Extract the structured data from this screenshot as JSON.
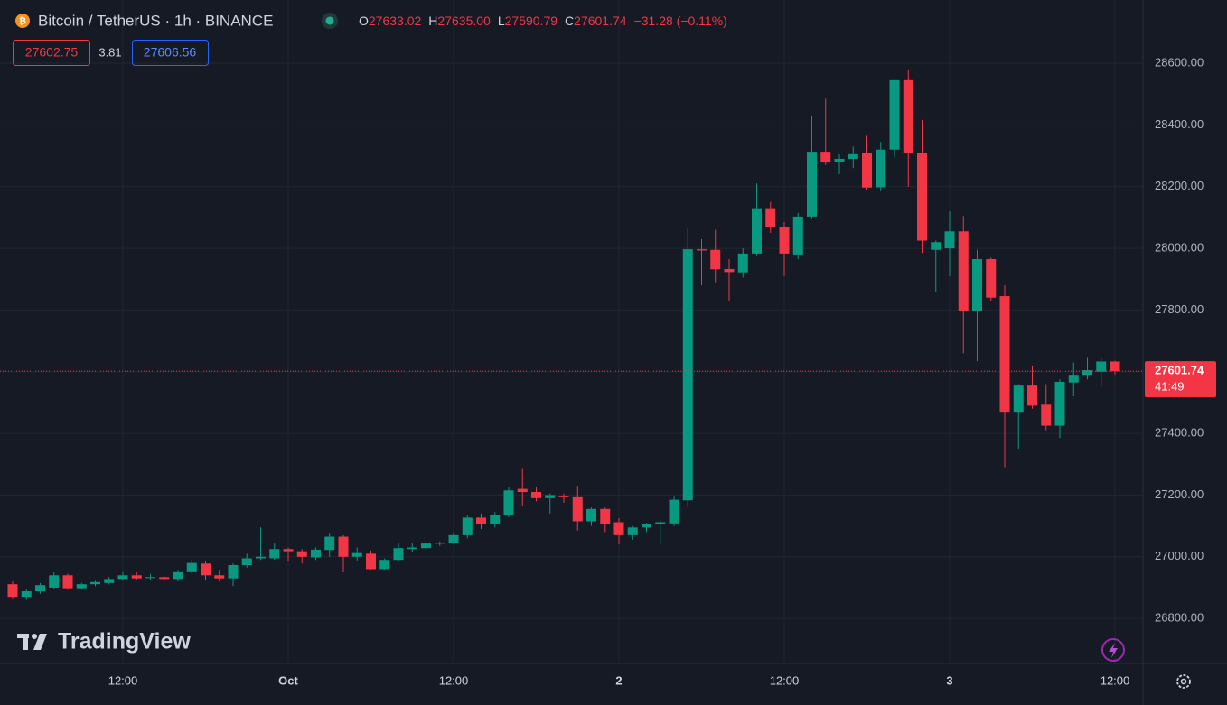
{
  "chart_data": {
    "type": "candlestick",
    "title": "Bitcoin / TetherUS · 1h · BINANCE",
    "ohlc_legend": [
      {
        "key": "O",
        "value": "27633.02"
      },
      {
        "key": "H",
        "value": "27635.00"
      },
      {
        "key": "L",
        "value": "27590.79"
      },
      {
        "key": "C",
        "value": "27601.74"
      }
    ],
    "change": "−31.28 (−0.11%)",
    "bid": "27602.75",
    "spread": "3.81",
    "ask": "27606.56",
    "watermark": "TradingView",
    "countdown": "41:49",
    "last_price": {
      "value": 27601.74,
      "label": "27601.74"
    },
    "up_color": "#089981",
    "down_color": "#f23645",
    "grid": true,
    "ylim": [
      26654,
      28805
    ],
    "yticks": [
      {
        "value": 26800,
        "label": "26800.00"
      },
      {
        "value": 27000,
        "label": "27000.00"
      },
      {
        "value": 27200,
        "label": "27200.00"
      },
      {
        "value": 27400,
        "label": "27400.00"
      },
      {
        "value": 27600,
        "label": "27600.00"
      },
      {
        "value": 27800,
        "label": "27800.00"
      },
      {
        "value": 28000,
        "label": "28000.00"
      },
      {
        "value": 28200,
        "label": "28200.00"
      },
      {
        "value": 28400,
        "label": "28400.00"
      },
      {
        "value": 28600,
        "label": "28600.00"
      }
    ],
    "categories": [
      null,
      null,
      null,
      null,
      null,
      null,
      null,
      null,
      "12:00",
      null,
      null,
      null,
      null,
      null,
      null,
      null,
      null,
      null,
      null,
      null,
      "Oct",
      null,
      null,
      null,
      null,
      null,
      null,
      null,
      null,
      null,
      null,
      null,
      "12:00",
      null,
      null,
      null,
      null,
      null,
      null,
      null,
      null,
      null,
      null,
      null,
      "2",
      null,
      null,
      null,
      null,
      null,
      null,
      null,
      null,
      null,
      null,
      null,
      "12:00",
      null,
      null,
      null,
      null,
      null,
      null,
      null,
      null,
      null,
      null,
      null,
      "3",
      null,
      null,
      null,
      null,
      null,
      null,
      null,
      null,
      null,
      null,
      null,
      "12:00"
    ],
    "open": [
      26911,
      26870,
      26888,
      26900,
      26940,
      26898,
      26911,
      26915,
      26928,
      26940,
      26932,
      26934,
      26928,
      26950,
      26978,
      26940,
      26930,
      26973,
      26995,
      26995,
      27025,
      27018,
      26998,
      27022,
      27065,
      27000,
      27010,
      26960,
      26990,
      27025,
      27028,
      27043,
      27045,
      27070,
      27127,
      27107,
      27135,
      27220,
      27210,
      27190,
      27198,
      27193,
      27115,
      27155,
      27112,
      27070,
      27095,
      27105,
      27108,
      27183,
      27997,
      27995,
      27933,
      27922,
      27983,
      28130,
      28070,
      27980,
      28103,
      28313,
      28280,
      28290,
      28308,
      28198,
      28320,
      28545,
      28308,
      27995,
      28000,
      28055,
      27798,
      27965,
      27845,
      27470,
      27555,
      27493,
      27425,
      27565,
      27590,
      27600,
      27633.02
    ],
    "high": [
      26920,
      26895,
      26915,
      26950,
      26945,
      26915,
      26922,
      26935,
      26950,
      26950,
      26945,
      26938,
      26955,
      26990,
      26985,
      26955,
      26978,
      27010,
      27095,
      27045,
      27030,
      27025,
      27030,
      27075,
      27070,
      27030,
      27020,
      26995,
      27045,
      27045,
      27050,
      27050,
      27075,
      27135,
      27140,
      27145,
      27225,
      27285,
      27225,
      27205,
      27205,
      27230,
      27160,
      27160,
      27125,
      27100,
      27110,
      27118,
      27195,
      28065,
      28030,
      28060,
      27965,
      28000,
      28210,
      28150,
      28085,
      28115,
      28430,
      28485,
      28305,
      28330,
      28365,
      28345,
      28545,
      28580,
      28416,
      28025,
      28120,
      28105,
      27995,
      27970,
      27880,
      27560,
      27620,
      27560,
      27575,
      27630,
      27645,
      27645,
      27635
    ],
    "low": [
      26862,
      26860,
      26880,
      26895,
      26893,
      26893,
      26905,
      26910,
      26922,
      26925,
      26925,
      26922,
      26920,
      26945,
      26925,
      26920,
      26905,
      26965,
      26990,
      26990,
      26985,
      26978,
      26990,
      27000,
      26950,
      26985,
      26955,
      26955,
      26985,
      27015,
      27020,
      27035,
      27040,
      27060,
      27090,
      27095,
      27128,
      27165,
      27180,
      27140,
      27175,
      27085,
      27100,
      27080,
      27040,
      27055,
      27080,
      27040,
      27100,
      27160,
      27880,
      27890,
      27830,
      27905,
      27975,
      28050,
      27910,
      27965,
      28095,
      28270,
      28240,
      28260,
      28190,
      28185,
      28295,
      28200,
      27985,
      27860,
      27910,
      27660,
      27634,
      27830,
      27290,
      27350,
      27480,
      27410,
      27385,
      27520,
      27575,
      27555,
      27590.79
    ],
    "close": [
      26870,
      26888,
      26908,
      26940,
      26898,
      26911,
      26918,
      26928,
      26940,
      26930,
      26934,
      26928,
      26950,
      26980,
      26940,
      26930,
      26973,
      26995,
      27000,
      27025,
      27018,
      27000,
      27023,
      27065,
      27000,
      27012,
      26960,
      26990,
      27028,
      27030,
      27043,
      27045,
      27070,
      27127,
      27107,
      27135,
      27215,
      27210,
      27190,
      27200,
      27193,
      27115,
      27155,
      27107,
      27070,
      27095,
      27105,
      27112,
      27185,
      27997,
      27993,
      27932,
      27923,
      27983,
      28130,
      28070,
      27983,
      28103,
      28313,
      28278,
      28290,
      28305,
      28197,
      28320,
      28545,
      28308,
      28025,
      28020,
      28055,
      27798,
      27965,
      27840,
      27470,
      27555,
      27490,
      27425,
      27567,
      27590,
      27605,
      27633,
      27601.74
    ]
  }
}
